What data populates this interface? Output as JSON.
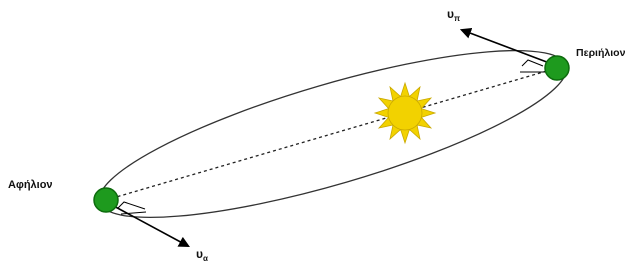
{
  "labels": {
    "perihelion": "Περιήλιον",
    "aphelion": "Αφήλιον",
    "v_perihelion": "υ",
    "v_perihelion_sub": "π",
    "v_aphelion": "υ",
    "v_aphelion_sub": "α"
  }
}
